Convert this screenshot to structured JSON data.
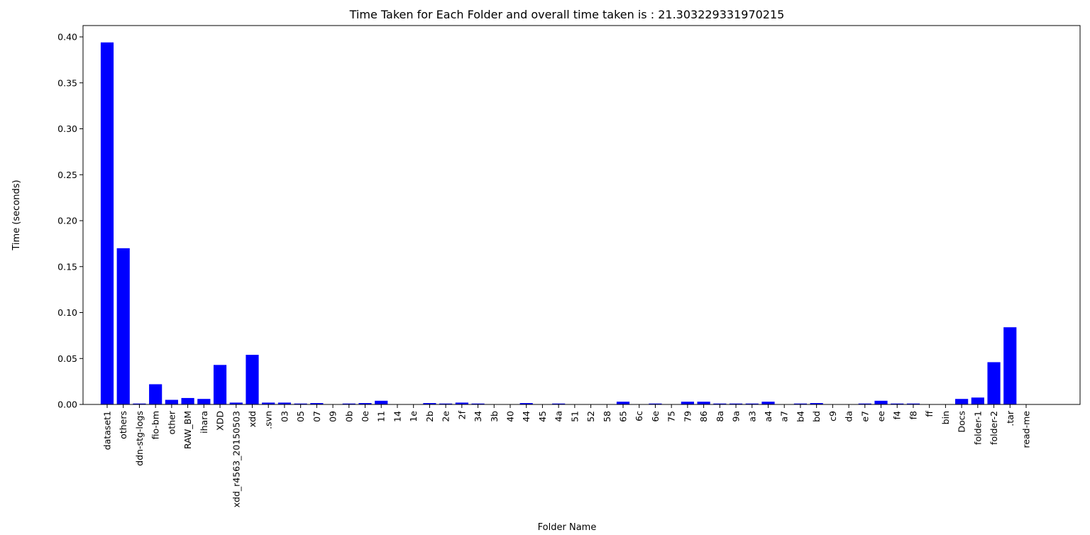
{
  "chart_data": {
    "type": "bar",
    "title": "Time Taken for Each Folder and overall time taken is : 21.303229331970215",
    "xlabel": "Folder Name",
    "ylabel": "Time (seconds)",
    "ylim": [
      0,
      0.41
    ],
    "yticks": [
      "0.00",
      "0.05",
      "0.10",
      "0.15",
      "0.20",
      "0.25",
      "0.30",
      "0.35",
      "0.40"
    ],
    "grid": false,
    "bar_color": "#0000ff",
    "categories": [
      "dataset1",
      "others",
      "ddn-stg-logs",
      "fio-bm",
      "other",
      "RAW_BM",
      "ihara",
      "XDD",
      "xdd_r4563_20150503",
      "xdd",
      ".svn",
      "03",
      "05",
      "07",
      "09",
      "0b",
      "0e",
      "11",
      "14",
      "1e",
      "2b",
      "2e",
      "2f",
      "34",
      "3b",
      "40",
      "44",
      "45",
      "4a",
      "51",
      "52",
      "58",
      "65",
      "6c",
      "6e",
      "75",
      "79",
      "86",
      "8a",
      "9a",
      "a3",
      "a4",
      "a7",
      "b4",
      "bd",
      "c9",
      "da",
      "e7",
      "ee",
      "f4",
      "f8",
      "ff",
      "bin",
      "Docs",
      "folder-1",
      "folder-2",
      ".tar",
      "read-me"
    ],
    "values": [
      0.394,
      0.17,
      0.001,
      0.022,
      0.005,
      0.007,
      0.006,
      0.043,
      0.002,
      0.054,
      0.002,
      0.002,
      0.001,
      0.0015,
      0.0003,
      0.001,
      0.0015,
      0.004,
      0.0002,
      0.0002,
      0.0015,
      0.001,
      0.002,
      0.001,
      0.0003,
      0.0003,
      0.0015,
      0.0003,
      0.001,
      0.0002,
      0.0002,
      0.0002,
      0.003,
      0.0003,
      0.001,
      0.0003,
      0.003,
      0.003,
      0.001,
      0.001,
      0.001,
      0.003,
      0.0002,
      0.001,
      0.0015,
      0.0003,
      0.0003,
      0.001,
      0.004,
      0.001,
      0.001,
      0.0002,
      0.0002,
      0.006,
      0.0075,
      0.046,
      0.084,
      0.0002
    ]
  }
}
